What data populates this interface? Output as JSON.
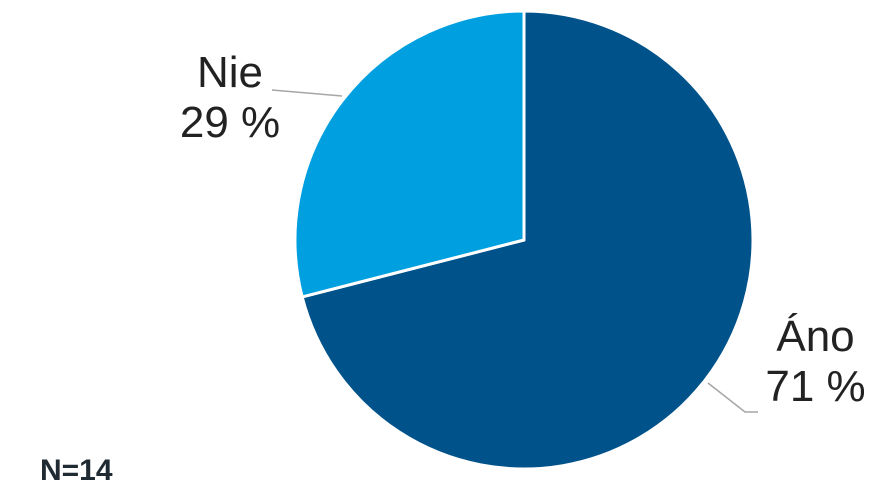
{
  "chart_data": {
    "type": "pie",
    "slices": [
      {
        "name": "Áno",
        "value": 71,
        "value_label": "71 %",
        "color": "#00528a"
      },
      {
        "name": "Nie",
        "value": 29,
        "value_label": "29 %",
        "color": "#00a0e0"
      }
    ],
    "start": "12 o'clock",
    "direction": "clockwise",
    "note": "N=14"
  }
}
